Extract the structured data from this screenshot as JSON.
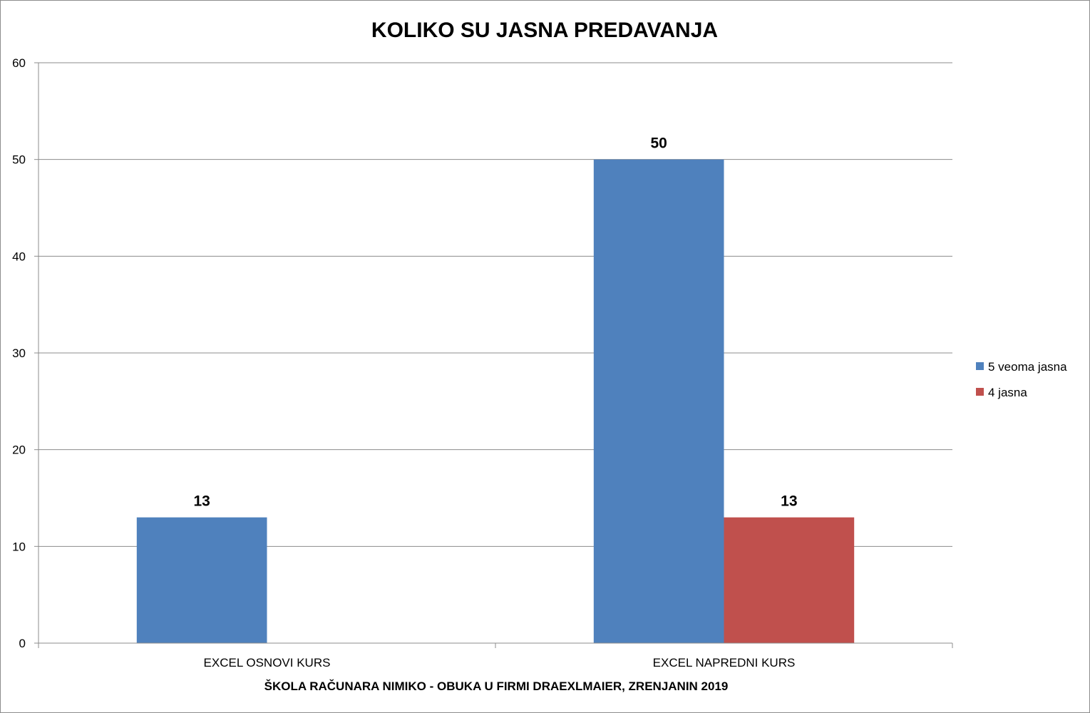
{
  "chart_data": {
    "type": "bar",
    "title": "KOLIKO SU JASNA PREDAVANJA",
    "xlabel": "ŠKOLA RAČUNARA NIMIKO - OBUKA U FIRMI DRAEXLMAIER, ZRENJANIN 2019",
    "ylabel": "",
    "categories": [
      "EXCEL OSNOVI KURS",
      "EXCEL NAPREDNI KURS"
    ],
    "series": [
      {
        "name": "5 veoma jasna",
        "values": [
          13,
          50
        ],
        "color": "#4f81bd"
      },
      {
        "name": "4 jasna",
        "values": [
          null,
          13
        ],
        "color": "#c0504d"
      }
    ],
    "ylim": [
      0,
      60
    ],
    "yticks": [
      0,
      10,
      20,
      30,
      40,
      50,
      60
    ],
    "grid": true,
    "legend": "right"
  }
}
